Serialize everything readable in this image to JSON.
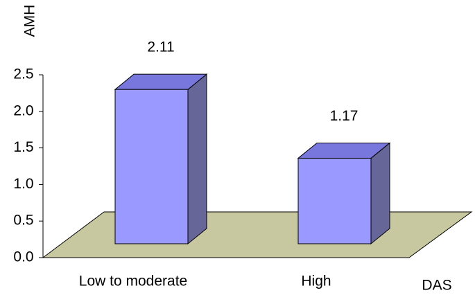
{
  "chart_data": {
    "type": "bar3d",
    "categories": [
      "Low to moderate",
      "High"
    ],
    "values": [
      2.11,
      1.17
    ],
    "ylabel": "AMH",
    "xlabel": "DAS",
    "ylim": [
      0,
      2.5
    ],
    "yticks": [
      {
        "value": 0,
        "label": "0.0"
      },
      0.5,
      {
        "value": 1,
        "label": "1.0"
      },
      1.5,
      {
        "value": 2,
        "label": "2.0"
      },
      2.5
    ],
    "colors": {
      "front": "#9999ff",
      "side": "#666699",
      "top": "#7777dd",
      "floor": "#c8c8a0"
    }
  }
}
